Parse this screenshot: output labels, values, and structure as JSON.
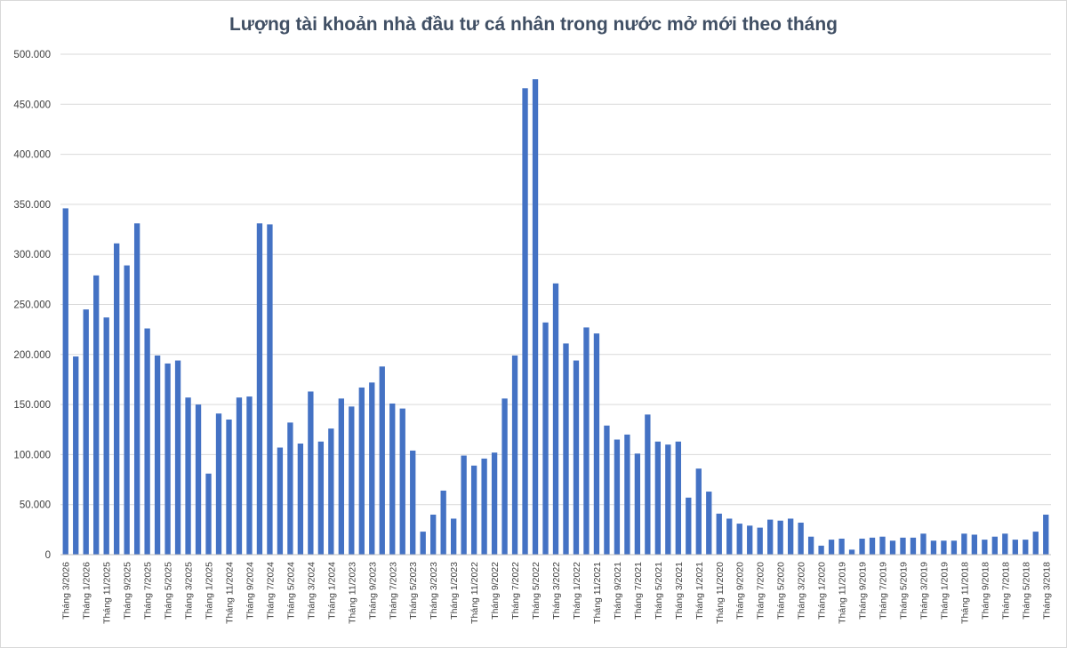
{
  "chart_data": {
    "type": "bar",
    "title": "Lượng tài khoản nhà đầu tư cá nhân trong nước mở mới theo tháng",
    "xlabel": "",
    "ylabel": "",
    "ylim": [
      0,
      500000
    ],
    "yticks": [
      0,
      50000,
      100000,
      150000,
      200000,
      250000,
      300000,
      350000,
      400000,
      450000,
      500000
    ],
    "ytick_labels": [
      "0",
      "50.000",
      "100.000",
      "150.000",
      "200.000",
      "250.000",
      "300.000",
      "350.000",
      "400.000",
      "450.000",
      "500.000"
    ],
    "grid": true,
    "legend": "none",
    "bar_color": "#4472c4",
    "categories": [
      "Tháng 3/2026",
      "Tháng 2/2026",
      "Tháng 1/2026",
      "Tháng 12/2025",
      "Tháng 11/2025",
      "Tháng 10/2025",
      "Tháng 9/2025",
      "Tháng 8/2025",
      "Tháng 7/2025",
      "Tháng 6/2025",
      "Tháng 5/2025",
      "Tháng 4/2025",
      "Tháng 3/2025",
      "Tháng 2/2025",
      "Tháng 1/2025",
      "Tháng 12/2024",
      "Tháng 11/2024",
      "Tháng 10/2024",
      "Tháng 9/2024",
      "Tháng 8/2024",
      "Tháng 7/2024",
      "Tháng 6/2024",
      "Tháng 5/2024",
      "Tháng 4/2024",
      "Tháng 3/2024",
      "Tháng 2/2024",
      "Tháng 1/2024",
      "Tháng 12/2023",
      "Tháng 11/2023",
      "Tháng 10/2023",
      "Tháng 9/2023",
      "Tháng 8/2023",
      "Tháng 7/2023",
      "Tháng 6/2023",
      "Tháng 5/2023",
      "Tháng 4/2023",
      "Tháng 3/2023",
      "Tháng 2/2023",
      "Tháng 1/2023",
      "Tháng 12/2022",
      "Tháng 11/2022",
      "Tháng 10/2022",
      "Tháng 9/2022",
      "Tháng 8/2022",
      "Tháng 7/2022",
      "Tháng 6/2022",
      "Tháng 5/2022",
      "Tháng 4/2022",
      "Tháng 3/2022",
      "Tháng 2/2022",
      "Tháng 1/2022",
      "Tháng 12/2021",
      "Tháng 11/2021",
      "Tháng 10/2021",
      "Tháng 9/2021",
      "Tháng 8/2021",
      "Tháng 7/2021",
      "Tháng 6/2021",
      "Tháng 5/2021",
      "Tháng 4/2021",
      "Tháng 3/2021",
      "Tháng 2/2021",
      "Tháng 1/2021",
      "Tháng 12/2020",
      "Tháng 11/2020",
      "Tháng 10/2020",
      "Tháng 9/2020",
      "Tháng 8/2020",
      "Tháng 7/2020",
      "Tháng 6/2020",
      "Tháng 5/2020",
      "Tháng 4/2020",
      "Tháng 3/2020",
      "Tháng 2/2020",
      "Tháng 1/2020",
      "Tháng 12/2019",
      "Tháng 11/2019",
      "Tháng 10/2019",
      "Tháng 9/2019",
      "Tháng 8/2019",
      "Tháng 7/2019",
      "Tháng 6/2019",
      "Tháng 5/2019",
      "Tháng 4/2019",
      "Tháng 3/2019",
      "Tháng 2/2019",
      "Tháng 1/2019",
      "Tháng 12/2018",
      "Tháng 11/2018",
      "Tháng 10/2018",
      "Tháng 9/2018",
      "Tháng 8/2018",
      "Tháng 7/2018",
      "Tháng 6/2018",
      "Tháng 5/2018",
      "Tháng 4/2018",
      "Tháng 3/2018"
    ],
    "visible_tick_labels": [
      "Tháng 3/2026",
      "Tháng 1/2026",
      "Tháng 11/2025",
      "Tháng 9/2025",
      "Tháng 7/2025",
      "Tháng 5/2025",
      "Tháng 3/2025",
      "Tháng 1/2025",
      "Tháng 11/2024",
      "Tháng 9/2024",
      "Tháng 7/2024",
      "Tháng 5/2024",
      "Tháng 3/2024",
      "Tháng 1/2024",
      "Tháng 11/2023",
      "Tháng 9/2023",
      "Tháng 7/2023",
      "Tháng 5/2023",
      "Tháng 3/2023",
      "Tháng 1/2023",
      "Tháng 11/2022",
      "Tháng 9/2022",
      "Tháng 7/2022",
      "Tháng 5/2022",
      "Tháng 3/2022",
      "Tháng 1/2022",
      "Tháng 11/2021",
      "Tháng 9/2021",
      "Tháng 7/2021",
      "Tháng 5/2021",
      "Tháng 3/2021",
      "Tháng 1/2021",
      "Tháng 11/2020",
      "Tháng 9/2020",
      "Tháng 7/2020",
      "Tháng 5/2020",
      "Tháng 3/2020",
      "Tháng 1/2020",
      "Tháng 11/2019",
      "Tháng 9/2019",
      "Tháng 7/2019",
      "Tháng 5/2019",
      "Tháng 3/2019",
      "Tháng 1/2019",
      "Tháng 11/2018",
      "Tháng 9/2018",
      "Tháng 7/2018",
      "Tháng 5/2018",
      "Tháng 3/2018"
    ],
    "values": [
      346000,
      198000,
      245000,
      279000,
      237000,
      311000,
      289000,
      331000,
      226000,
      199000,
      191000,
      194000,
      157000,
      150000,
      81000,
      141000,
      135000,
      157000,
      158000,
      331000,
      330000,
      107000,
      132000,
      111000,
      163000,
      113000,
      126000,
      156000,
      148000,
      167000,
      172000,
      188000,
      151000,
      146000,
      104000,
      23000,
      40000,
      64000,
      36000,
      99000,
      89000,
      96000,
      102000,
      156000,
      199000,
      466000,
      475000,
      232000,
      271000,
      211000,
      194000,
      227000,
      221000,
      129000,
      115000,
      120000,
      101000,
      140000,
      113000,
      110000,
      113000,
      57000,
      86000,
      63000,
      41000,
      36000,
      31000,
      29000,
      27000,
      35000,
      34000,
      36000,
      32000,
      18000,
      9000,
      15000,
      16000,
      5000,
      16000,
      17000,
      18000,
      14000,
      17000,
      17000,
      21000,
      14000,
      14000,
      14000,
      21000,
      20000,
      15000,
      18000,
      21000,
      15000,
      15000,
      23000,
      40000
    ]
  }
}
